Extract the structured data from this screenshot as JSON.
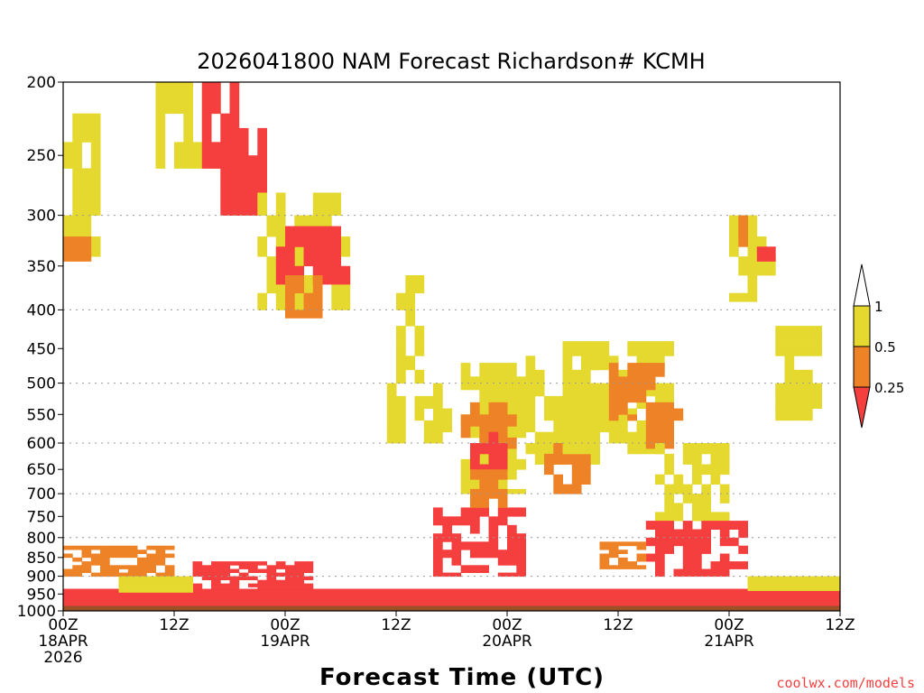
{
  "chart_data": {
    "type": "heatmap",
    "title": "2026041800 NAM Forecast Richardson# KCMH",
    "xlabel": "Forecast Time (UTC)",
    "ylabel": "",
    "credit": "coolwx.com/models",
    "xlim": [
      0,
      84
    ],
    "ylim": [
      1000,
      200
    ],
    "x_ticks": [
      {
        "hour": 0,
        "lines": [
          "00Z",
          "18APR",
          "2026"
        ]
      },
      {
        "hour": 12,
        "lines": [
          "12Z"
        ]
      },
      {
        "hour": 24,
        "lines": [
          "00Z",
          "19APR"
        ]
      },
      {
        "hour": 36,
        "lines": [
          "12Z"
        ]
      },
      {
        "hour": 48,
        "lines": [
          "00Z",
          "20APR"
        ]
      },
      {
        "hour": 60,
        "lines": [
          "12Z"
        ]
      },
      {
        "hour": 72,
        "lines": [
          "00Z",
          "21APR"
        ]
      },
      {
        "hour": 84,
        "lines": [
          "12Z"
        ]
      }
    ],
    "y_ticks": [
      200,
      250,
      300,
      350,
      400,
      450,
      500,
      550,
      600,
      650,
      700,
      750,
      800,
      850,
      900,
      950,
      1000
    ],
    "gridlines_hpa": [
      300,
      400,
      500,
      600,
      700,
      800,
      900
    ],
    "legend": {
      "placement": "right",
      "labels": [
        "1",
        "0.5",
        "0.25"
      ],
      "bins": [
        {
          "range": "< 0.25",
          "color": "#f53f3f"
        },
        {
          "range": "0.25 - 0.5",
          "color": "#ee8227"
        },
        {
          "range": "0.5 - 1",
          "color": "#e5d92f"
        },
        {
          "range": "> 1",
          "color": "#ffffff"
        }
      ]
    },
    "colors": {
      "low": "#f53f3f",
      "mid": "#ee8227",
      "high": "#e5d92f",
      "ground": "#9c5128"
    },
    "surface_pressure_hpa": 985,
    "regions": [
      {
        "bin": "high",
        "t": [
          0,
          4
        ],
        "p": [
          220,
          340
        ]
      },
      {
        "bin": "mid",
        "t": [
          0,
          3
        ],
        "p": [
          320,
          345
        ]
      },
      {
        "bin": "high",
        "t": [
          10,
          17
        ],
        "p": [
          200,
          260
        ]
      },
      {
        "bin": "low",
        "t": [
          15,
          19
        ],
        "p": [
          200,
          260
        ]
      },
      {
        "bin": "low",
        "t": [
          17,
          22
        ],
        "p": [
          230,
          300
        ]
      },
      {
        "bin": "high",
        "t": [
          21,
          31
        ],
        "p": [
          280,
          400
        ]
      },
      {
        "bin": "low",
        "t": [
          23,
          31
        ],
        "p": [
          310,
          370
        ]
      },
      {
        "bin": "mid",
        "t": [
          24,
          28
        ],
        "p": [
          360,
          410
        ]
      },
      {
        "bin": "high",
        "t": [
          36,
          39
        ],
        "p": [
          360,
          500
        ]
      },
      {
        "bin": "high",
        "t": [
          35,
          42
        ],
        "p": [
          500,
          600
        ]
      },
      {
        "bin": "high",
        "t": [
          43,
          50
        ],
        "p": [
          470,
          700
        ]
      },
      {
        "bin": "mid",
        "t": [
          43,
          49
        ],
        "p": [
          530,
          630
        ]
      },
      {
        "bin": "low",
        "t": [
          44,
          48
        ],
        "p": [
          580,
          650
        ]
      },
      {
        "bin": "high",
        "t": [
          50,
          58
        ],
        "p": [
          460,
          640
        ]
      },
      {
        "bin": "mid",
        "t": [
          52,
          57
        ],
        "p": [
          600,
          700
        ]
      },
      {
        "bin": "high",
        "t": [
          54,
          66
        ],
        "p": [
          440,
          620
        ]
      },
      {
        "bin": "mid",
        "t": [
          59,
          66
        ],
        "p": [
          470,
          560
        ]
      },
      {
        "bin": "mid",
        "t": [
          63,
          67
        ],
        "p": [
          540,
          610
        ]
      },
      {
        "bin": "high",
        "t": [
          64,
          72
        ],
        "p": [
          600,
          760
        ]
      },
      {
        "bin": "high",
        "t": [
          72,
          77
        ],
        "p": [
          300,
          390
        ]
      },
      {
        "bin": "mid",
        "t": [
          73,
          75
        ],
        "p": [
          300,
          330
        ]
      },
      {
        "bin": "low",
        "t": [
          75,
          77
        ],
        "p": [
          330,
          345
        ]
      },
      {
        "bin": "high",
        "t": [
          77,
          82
        ],
        "p": [
          420,
          560
        ]
      },
      {
        "bin": "low",
        "t": [
          40,
          50
        ],
        "p": [
          730,
          900
        ]
      },
      {
        "bin": "mid",
        "t": [
          44,
          48
        ],
        "p": [
          650,
          730
        ]
      },
      {
        "bin": "low",
        "t": [
          63,
          74
        ],
        "p": [
          760,
          900
        ]
      },
      {
        "bin": "mid",
        "t": [
          58,
          63
        ],
        "p": [
          810,
          880
        ]
      },
      {
        "bin": "low",
        "t": [
          14,
          27
        ],
        "p": [
          860,
          950
        ]
      },
      {
        "bin": "low",
        "t": [
          0,
          84
        ],
        "p": [
          935,
          985
        ]
      },
      {
        "bin": "mid",
        "t": [
          0,
          12
        ],
        "p": [
          820,
          900
        ]
      },
      {
        "bin": "high",
        "t": [
          6,
          14
        ],
        "p": [
          900,
          945
        ]
      },
      {
        "bin": "high",
        "t": [
          74,
          84
        ],
        "p": [
          900,
          940
        ]
      }
    ]
  }
}
